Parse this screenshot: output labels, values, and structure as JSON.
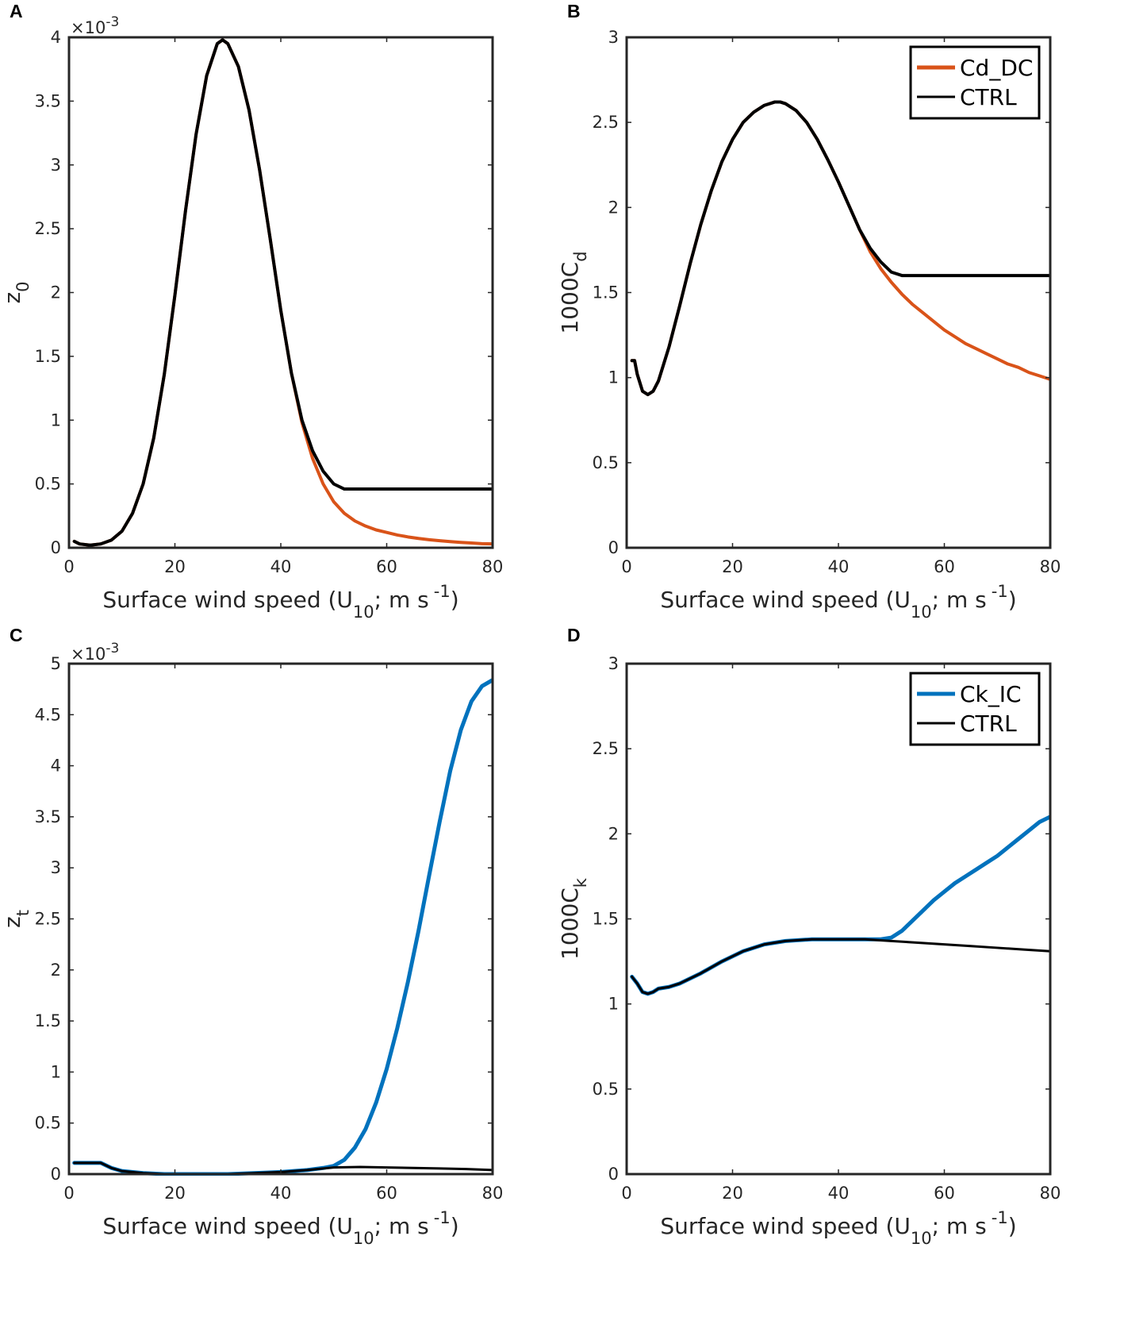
{
  "chart_data": [
    {
      "panel": "A",
      "type": "line",
      "xlabel": "Surface wind speed (U",
      "xlabel_sub": "10",
      "xlabel_tail": "; m s",
      "xlabel_sup": "-1",
      "xlabel_close": ")",
      "ylabel": "z",
      "ylabel_sub": "0",
      "exponent": "×10",
      "exponent_sup": "-3",
      "xlim": [
        0,
        80
      ],
      "ylim": [
        0,
        4
      ],
      "xticks": [
        "0",
        "20",
        "40",
        "60",
        "80"
      ],
      "yticks": [
        "0",
        "0.5",
        "1",
        "1.5",
        "2",
        "2.5",
        "3",
        "3.5",
        "4"
      ],
      "legend": [],
      "series": [
        {
          "name": "Cd_DC",
          "color": "#D95319",
          "width": 4,
          "x": [
            1,
            2,
            4,
            6,
            8,
            10,
            12,
            14,
            16,
            18,
            20,
            22,
            24,
            26,
            28,
            29,
            30,
            32,
            34,
            36,
            38,
            40,
            42,
            44,
            46,
            48,
            50,
            52,
            54,
            56,
            58,
            60,
            62,
            64,
            66,
            68,
            70,
            72,
            74,
            76,
            78,
            80
          ],
          "y": [
            0.05,
            0.03,
            0.02,
            0.03,
            0.06,
            0.13,
            0.27,
            0.5,
            0.86,
            1.36,
            1.98,
            2.64,
            3.24,
            3.7,
            3.95,
            3.98,
            3.95,
            3.77,
            3.43,
            2.96,
            2.42,
            1.86,
            1.37,
            0.98,
            0.7,
            0.5,
            0.36,
            0.27,
            0.21,
            0.17,
            0.14,
            0.12,
            0.1,
            0.085,
            0.073,
            0.063,
            0.055,
            0.048,
            0.042,
            0.037,
            0.032,
            0.03
          ]
        },
        {
          "name": "CTRL",
          "color": "#000000",
          "width": 4,
          "x": [
            1,
            2,
            4,
            6,
            8,
            10,
            12,
            14,
            16,
            18,
            20,
            22,
            24,
            26,
            28,
            29,
            30,
            32,
            34,
            36,
            38,
            40,
            42,
            44,
            46,
            48,
            50,
            52,
            54,
            56,
            58,
            60,
            62,
            64,
            66,
            68,
            70,
            72,
            74,
            76,
            78,
            80
          ],
          "y": [
            0.05,
            0.03,
            0.02,
            0.03,
            0.06,
            0.13,
            0.27,
            0.5,
            0.86,
            1.36,
            1.98,
            2.64,
            3.24,
            3.7,
            3.95,
            3.98,
            3.95,
            3.77,
            3.43,
            2.96,
            2.42,
            1.86,
            1.37,
            1.0,
            0.76,
            0.6,
            0.5,
            0.46,
            0.46,
            0.46,
            0.46,
            0.46,
            0.46,
            0.46,
            0.46,
            0.46,
            0.46,
            0.46,
            0.46,
            0.46,
            0.46,
            0.46
          ]
        }
      ]
    },
    {
      "panel": "B",
      "type": "line",
      "xlabel": "Surface wind speed (U",
      "xlabel_sub": "10",
      "xlabel_tail": "; m s",
      "xlabel_sup": "-1",
      "xlabel_close": ")",
      "ylabel": "1000C",
      "ylabel_sub": "d",
      "exponent": "",
      "exponent_sup": "",
      "xlim": [
        0,
        80
      ],
      "ylim": [
        0,
        3
      ],
      "xticks": [
        "0",
        "20",
        "40",
        "60",
        "80"
      ],
      "yticks": [
        "0",
        "0.5",
        "1",
        "1.5",
        "2",
        "2.5",
        "3"
      ],
      "legend": [
        {
          "label": "Cd_DC",
          "color": "#D95319"
        },
        {
          "label": "CTRL",
          "color": "#000000"
        }
      ],
      "series": [
        {
          "name": "Cd_DC",
          "color": "#D95319",
          "width": 4,
          "x": [
            1,
            1.5,
            2,
            3,
            4,
            5,
            6,
            8,
            10,
            12,
            14,
            16,
            18,
            20,
            22,
            24,
            26,
            28,
            29,
            30,
            32,
            34,
            36,
            38,
            40,
            42,
            44,
            46,
            48,
            50,
            52,
            54,
            56,
            58,
            60,
            62,
            64,
            66,
            68,
            70,
            72,
            74,
            76,
            78,
            80
          ],
          "y": [
            1.1,
            1.1,
            1.02,
            0.92,
            0.9,
            0.92,
            0.98,
            1.18,
            1.42,
            1.67,
            1.9,
            2.1,
            2.27,
            2.4,
            2.5,
            2.56,
            2.6,
            2.62,
            2.62,
            2.61,
            2.57,
            2.5,
            2.4,
            2.28,
            2.15,
            2.01,
            1.87,
            1.74,
            1.64,
            1.56,
            1.49,
            1.43,
            1.38,
            1.33,
            1.28,
            1.24,
            1.2,
            1.17,
            1.14,
            1.11,
            1.08,
            1.06,
            1.03,
            1.01,
            0.99
          ]
        },
        {
          "name": "CTRL",
          "color": "#000000",
          "width": 4,
          "x": [
            1,
            1.5,
            2,
            3,
            4,
            5,
            6,
            8,
            10,
            12,
            14,
            16,
            18,
            20,
            22,
            24,
            26,
            28,
            29,
            30,
            32,
            34,
            36,
            38,
            40,
            42,
            44,
            46,
            48,
            50,
            52,
            54,
            56,
            58,
            60,
            62,
            64,
            66,
            68,
            70,
            72,
            74,
            76,
            78,
            80
          ],
          "y": [
            1.1,
            1.1,
            1.02,
            0.92,
            0.9,
            0.92,
            0.98,
            1.18,
            1.42,
            1.67,
            1.9,
            2.1,
            2.27,
            2.4,
            2.5,
            2.56,
            2.6,
            2.62,
            2.62,
            2.61,
            2.57,
            2.5,
            2.4,
            2.28,
            2.15,
            2.01,
            1.87,
            1.76,
            1.68,
            1.62,
            1.6,
            1.6,
            1.6,
            1.6,
            1.6,
            1.6,
            1.6,
            1.6,
            1.6,
            1.6,
            1.6,
            1.6,
            1.6,
            1.6,
            1.6
          ]
        }
      ]
    },
    {
      "panel": "C",
      "type": "line",
      "xlabel": "Surface wind speed (U",
      "xlabel_sub": "10",
      "xlabel_tail": "; m s",
      "xlabel_sup": "-1",
      "xlabel_close": ")",
      "ylabel": "z",
      "ylabel_sub": "t",
      "exponent": "×10",
      "exponent_sup": "-3",
      "xlim": [
        0,
        80
      ],
      "ylim": [
        0,
        5
      ],
      "xticks": [
        "0",
        "20",
        "40",
        "60",
        "80"
      ],
      "yticks": [
        "0",
        "0.5",
        "1",
        "1.5",
        "2",
        "2.5",
        "3",
        "3.5",
        "4",
        "4.5",
        "5"
      ],
      "legend": [],
      "series": [
        {
          "name": "Ck_IC",
          "color": "#0072BD",
          "width": 5,
          "x": [
            1,
            6,
            8,
            10,
            14,
            18,
            25,
            30,
            35,
            40,
            45,
            48,
            50,
            52,
            54,
            56,
            58,
            60,
            62,
            64,
            66,
            68,
            70,
            72,
            74,
            76,
            78,
            80
          ],
          "y": [
            0.11,
            0.11,
            0.06,
            0.03,
            0.01,
            0.0,
            0.0,
            0.0,
            0.01,
            0.02,
            0.04,
            0.06,
            0.08,
            0.14,
            0.26,
            0.44,
            0.7,
            1.03,
            1.43,
            1.88,
            2.38,
            2.92,
            3.45,
            3.95,
            4.35,
            4.63,
            4.78,
            4.84
          ]
        },
        {
          "name": "CTRL",
          "color": "#000000",
          "width": 3,
          "x": [
            1,
            6,
            8,
            10,
            14,
            18,
            25,
            30,
            35,
            40,
            45,
            50,
            55,
            60,
            65,
            70,
            75,
            80
          ],
          "y": [
            0.11,
            0.11,
            0.06,
            0.03,
            0.01,
            0.0,
            0.0,
            0.0,
            0.01,
            0.02,
            0.04,
            0.065,
            0.07,
            0.065,
            0.06,
            0.055,
            0.05,
            0.04
          ]
        }
      ]
    },
    {
      "panel": "D",
      "type": "line",
      "xlabel": "Surface wind speed (U",
      "xlabel_sub": "10",
      "xlabel_tail": "; m s",
      "xlabel_sup": "-1",
      "xlabel_close": ")",
      "ylabel": "1000C",
      "ylabel_sub": "k",
      "exponent": "",
      "exponent_sup": "",
      "xlim": [
        0,
        80
      ],
      "ylim": [
        0,
        3
      ],
      "xticks": [
        "0",
        "20",
        "40",
        "60",
        "80"
      ],
      "yticks": [
        "0",
        "0.5",
        "1",
        "1.5",
        "2",
        "2.5",
        "3"
      ],
      "legend": [
        {
          "label": "Ck_IC",
          "color": "#0072BD"
        },
        {
          "label": "CTRL",
          "color": "#000000"
        }
      ],
      "series": [
        {
          "name": "Ck_IC",
          "color": "#0072BD",
          "width": 5,
          "x": [
            1,
            2,
            3,
            4,
            5,
            6,
            8,
            10,
            14,
            18,
            22,
            26,
            30,
            35,
            40,
            45,
            48,
            50,
            52,
            54,
            56,
            58,
            60,
            62,
            64,
            66,
            68,
            70,
            72,
            74,
            76,
            78,
            80
          ],
          "y": [
            1.16,
            1.12,
            1.07,
            1.06,
            1.07,
            1.09,
            1.1,
            1.12,
            1.18,
            1.25,
            1.31,
            1.35,
            1.37,
            1.38,
            1.38,
            1.38,
            1.38,
            1.39,
            1.43,
            1.49,
            1.55,
            1.61,
            1.66,
            1.71,
            1.75,
            1.79,
            1.83,
            1.87,
            1.92,
            1.97,
            2.02,
            2.07,
            2.1
          ]
        },
        {
          "name": "CTRL",
          "color": "#000000",
          "width": 3,
          "x": [
            1,
            2,
            3,
            4,
            5,
            6,
            8,
            10,
            14,
            18,
            22,
            26,
            30,
            35,
            40,
            45,
            50,
            55,
            60,
            65,
            70,
            75,
            80
          ],
          "y": [
            1.16,
            1.12,
            1.07,
            1.06,
            1.07,
            1.09,
            1.1,
            1.12,
            1.18,
            1.25,
            1.31,
            1.35,
            1.37,
            1.38,
            1.38,
            1.38,
            1.37,
            1.36,
            1.35,
            1.34,
            1.33,
            1.32,
            1.31
          ]
        }
      ]
    }
  ]
}
